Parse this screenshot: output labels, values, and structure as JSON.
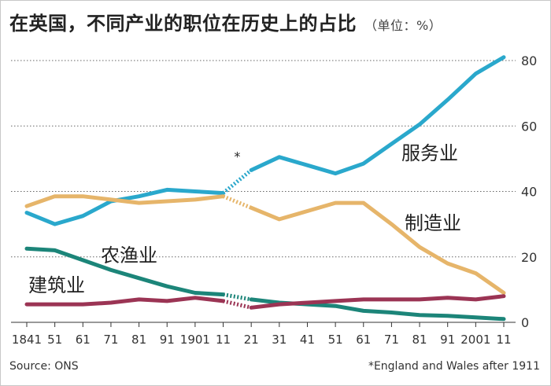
{
  "chart_data": {
    "type": "line",
    "title": "在英国，不同产业的职位在历史上的占比",
    "unit": "（单位：%）",
    "x": [
      "1841",
      "51",
      "61",
      "71",
      "81",
      "91",
      "1901",
      "11",
      "21",
      "31",
      "41",
      "51",
      "61",
      "71",
      "81",
      "91",
      "2001",
      "11"
    ],
    "ylim": [
      0,
      80
    ],
    "yticks": [
      0,
      20,
      40,
      60,
      80
    ],
    "grid": true,
    "break_between": [
      "11",
      "21"
    ],
    "break_marker": "*",
    "series": [
      {
        "name": "服务业",
        "color": "#2aa8cc",
        "values": [
          33.5,
          30,
          32.5,
          37,
          38.5,
          40.5,
          40,
          39.5,
          46.5,
          50.5,
          48,
          45.5,
          48.5,
          54.5,
          60.5,
          68,
          76,
          81
        ]
      },
      {
        "name": "制造业",
        "color": "#e6b56a",
        "values": [
          35.5,
          38.5,
          38.5,
          37.5,
          36.5,
          37,
          37.5,
          38.5,
          35,
          31.5,
          34,
          36.5,
          36.5,
          30,
          23,
          18,
          15,
          9
        ]
      },
      {
        "name": "农渔业",
        "color": "#1c8579",
        "values": [
          22.5,
          22,
          19,
          16,
          13.5,
          11,
          9,
          8.5,
          7,
          6,
          5.5,
          5,
          3.5,
          3,
          2.2,
          2,
          1.5,
          1
        ]
      },
      {
        "name": "建筑业",
        "color": "#9b3454",
        "values": [
          5.5,
          5.5,
          5.5,
          6,
          7,
          6.5,
          7.5,
          6.5,
          4.5,
          5.5,
          6,
          6.5,
          7,
          7,
          7,
          7.5,
          7,
          8
        ]
      }
    ]
  },
  "source": "Source: ONS",
  "footnote": "*England and Wales after 1911"
}
